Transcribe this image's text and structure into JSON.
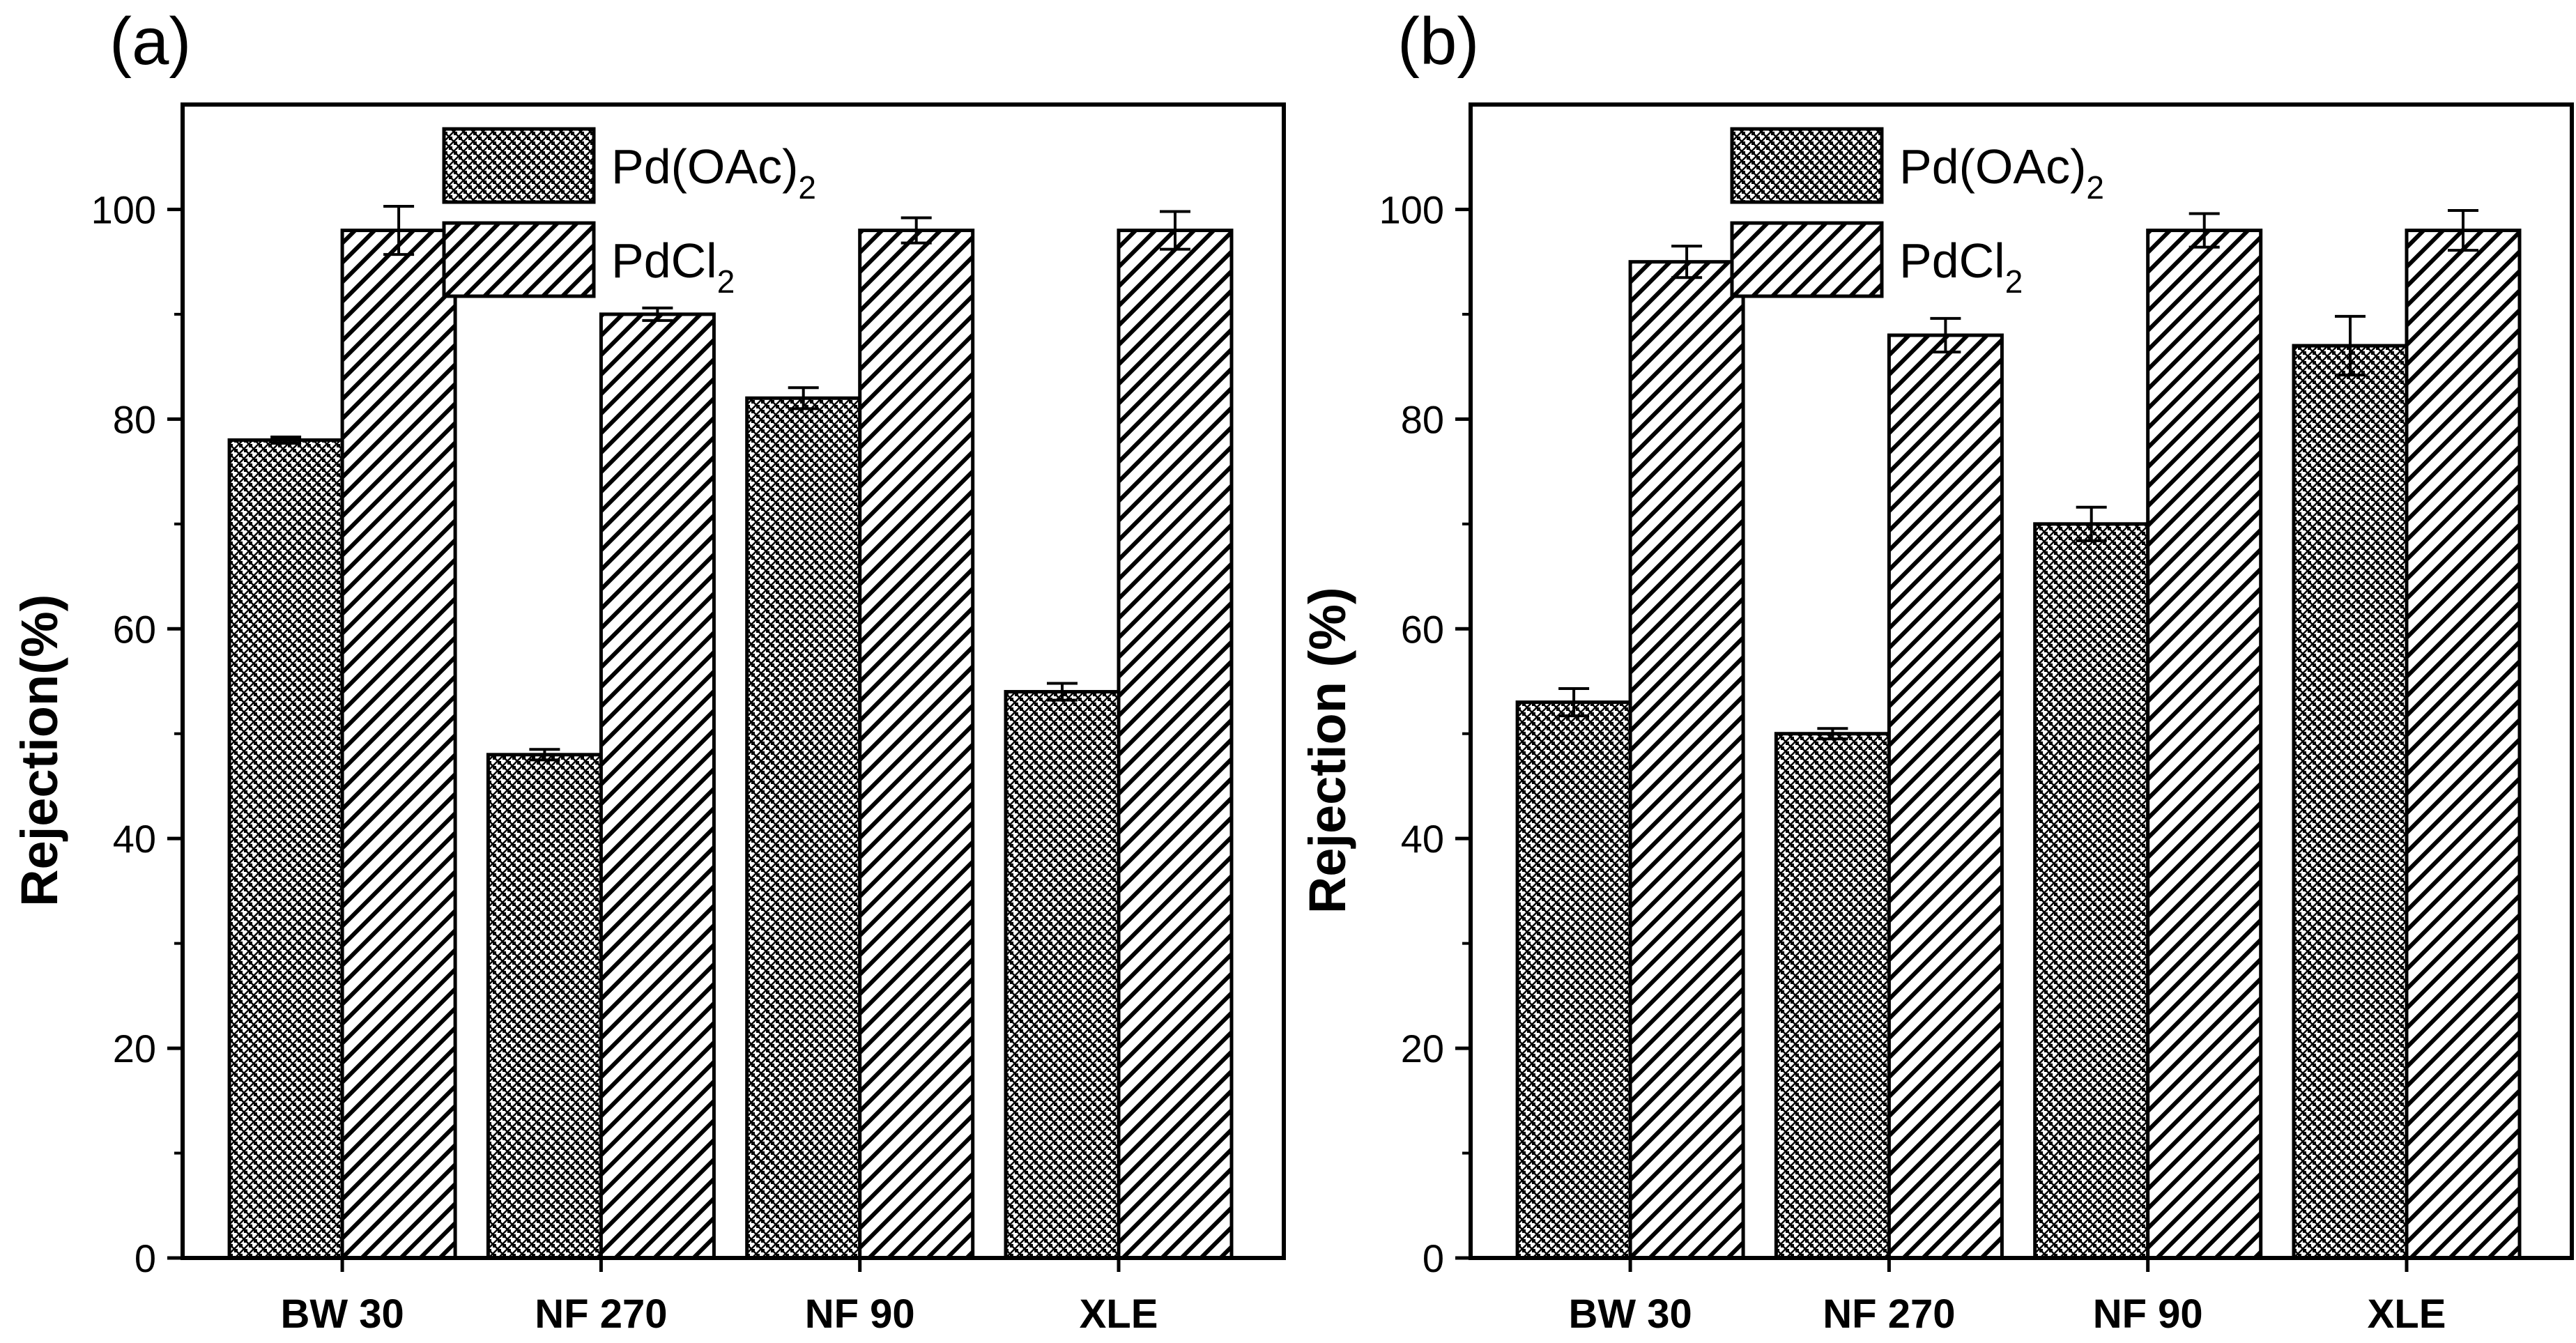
{
  "chart_data": [
    {
      "type": "bar",
      "panel_label": "(a)",
      "categories": [
        "BW 30",
        "NF 270",
        "NF 90",
        "XLE"
      ],
      "series": [
        {
          "name": "Pd(OAc)2",
          "label_main": "Pd(OAc)",
          "label_sub": "2",
          "pattern": "crosshatch",
          "values": [
            78,
            48,
            82,
            54
          ],
          "errors": [
            0.3,
            0.5,
            1.0,
            0.8
          ]
        },
        {
          "name": "PdCl2",
          "label_main": "PdCl",
          "label_sub": "2",
          "pattern": "diagonal",
          "values": [
            98,
            90,
            98,
            98
          ],
          "errors": [
            2.3,
            0.6,
            1.2,
            1.8
          ]
        }
      ],
      "ylabel": "Rejection(%)",
      "xlabel": "",
      "ylim": [
        0,
        110
      ],
      "yticks": [
        "0",
        "20",
        "40",
        "60",
        "80",
        "100"
      ],
      "legend": "top-center"
    },
    {
      "type": "bar",
      "panel_label": "(b)",
      "categories": [
        "BW 30",
        "NF 270",
        "NF 90",
        "XLE"
      ],
      "series": [
        {
          "name": "Pd(OAc)2",
          "label_main": "Pd(OAc)",
          "label_sub": "2",
          "pattern": "crosshatch",
          "values": [
            53,
            50,
            70,
            87
          ],
          "errors": [
            1.3,
            0.5,
            1.6,
            2.8
          ]
        },
        {
          "name": "PdCl2",
          "label_main": "PdCl",
          "label_sub": "2",
          "pattern": "diagonal",
          "values": [
            95,
            88,
            98,
            98
          ],
          "errors": [
            1.5,
            1.6,
            1.6,
            1.9
          ]
        }
      ],
      "ylabel": "Rejection (%)",
      "xlabel": "",
      "ylim": [
        0,
        110
      ],
      "yticks": [
        "0",
        "20",
        "40",
        "60",
        "80",
        "100"
      ],
      "legend": "top-center"
    }
  ]
}
